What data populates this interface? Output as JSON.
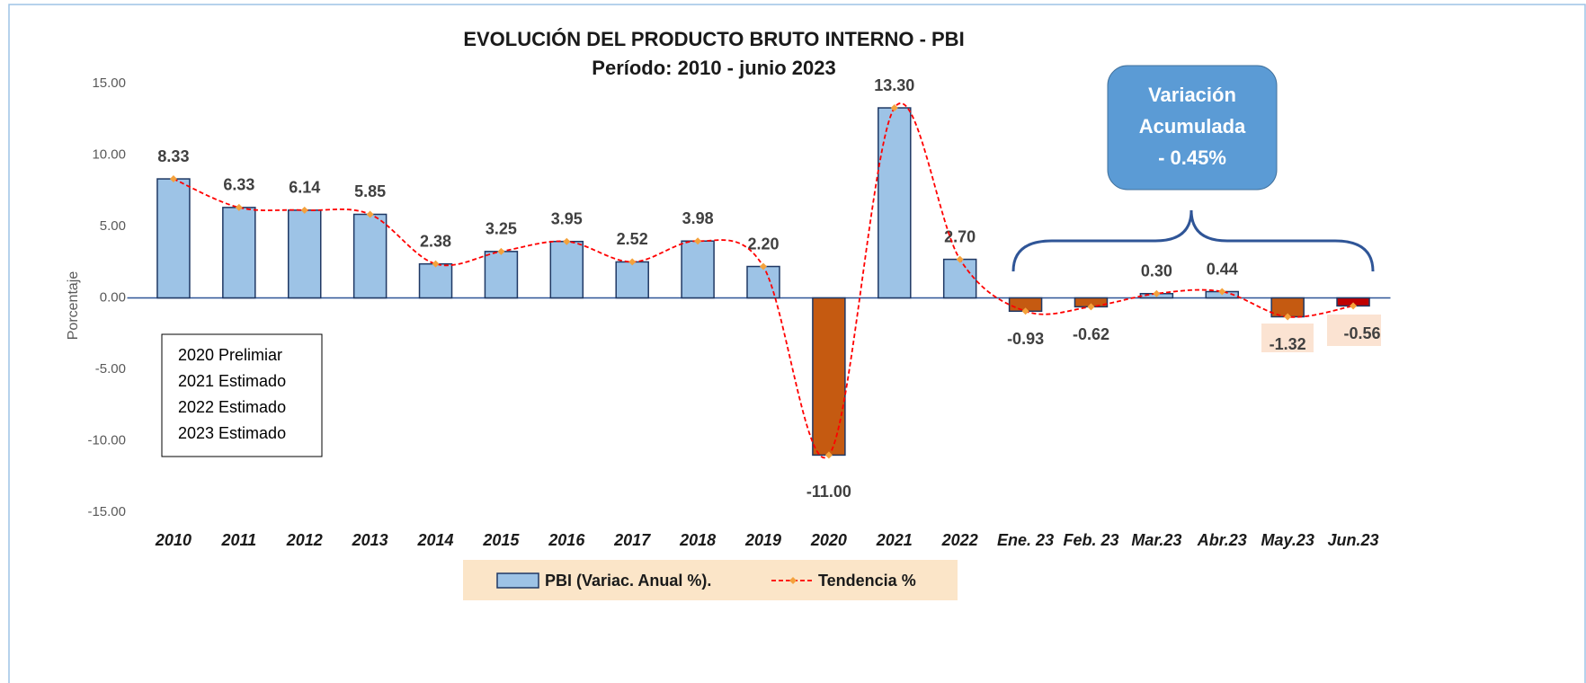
{
  "chart_data": {
    "type": "bar",
    "title": "EVOLUCIÓN DEL PRODUCTO BRUTO INTERNO - PBI",
    "subtitle": "Período: 2010 - junio 2023",
    "y_label": "Porcentaje",
    "categories": [
      "2010",
      "2011",
      "2012",
      "2013",
      "2014",
      "2015",
      "2016",
      "2017",
      "2018",
      "2019",
      "2020",
      "2021",
      "2022",
      "Ene. 23",
      "Feb. 23",
      "Mar.23",
      "Abr.23",
      "May.23",
      "Jun.23"
    ],
    "series": [
      {
        "name": "PBI (Variac. Anual %).",
        "type": "bar",
        "color": "#9dc3e6",
        "edge_color": "#1f3864",
        "colors": [
          "#9dc3e6",
          "#9dc3e6",
          "#9dc3e6",
          "#9dc3e6",
          "#9dc3e6",
          "#9dc3e6",
          "#9dc3e6",
          "#9dc3e6",
          "#9dc3e6",
          "#9dc3e6",
          "#c55a11",
          "#9dc3e6",
          "#9dc3e6",
          "#c55a11",
          "#c55a11",
          "#9dc3e6",
          "#9dc3e6",
          "#c55a11",
          "#c00000"
        ],
        "values": [
          8.33,
          6.33,
          6.14,
          5.85,
          2.38,
          3.25,
          3.95,
          2.52,
          3.98,
          2.2,
          -11.0,
          13.3,
          2.7,
          -0.93,
          -0.62,
          0.3,
          0.44,
          -1.32,
          -0.56
        ],
        "value_labels": [
          "8.33",
          "6.33",
          "6.14",
          "5.85",
          "2.38",
          "3.25",
          "3.95",
          "2.52",
          "3.98",
          "2.20",
          "-11.00",
          "13.30",
          "2.70",
          "-0.93",
          "-0.62",
          "0.30",
          "0.44",
          "-1.32",
          "-0.56"
        ]
      },
      {
        "name": "Tendencia %",
        "type": "line",
        "color": "#ff0000",
        "marker_color": "#f4a23c",
        "values": [
          8.33,
          6.33,
          6.14,
          5.85,
          2.38,
          3.25,
          3.95,
          2.52,
          3.98,
          2.2,
          -11.0,
          13.3,
          2.7,
          -0.93,
          -0.62,
          0.3,
          0.44,
          -1.32,
          -0.56
        ]
      }
    ],
    "ylim": [
      -15,
      15
    ],
    "yticks": [
      {
        "value": -15,
        "label": "-15.00"
      },
      {
        "value": -10,
        "label": "-10.00"
      },
      {
        "value": -5,
        "label": "-5.00"
      },
      {
        "value": 0,
        "label": "0.00"
      },
      {
        "value": 5,
        "label": "5.00"
      },
      {
        "value": 10,
        "label": "10.00"
      },
      {
        "value": 15,
        "label": "15.00"
      }
    ],
    "notes": [
      "2020 Prelimiar",
      "2021 Estimado",
      "2022 Estimado",
      "2023 Estimado"
    ],
    "callout": [
      "Variación",
      "Acumulada",
      "- 0.45%"
    ],
    "legend": "bottom"
  }
}
